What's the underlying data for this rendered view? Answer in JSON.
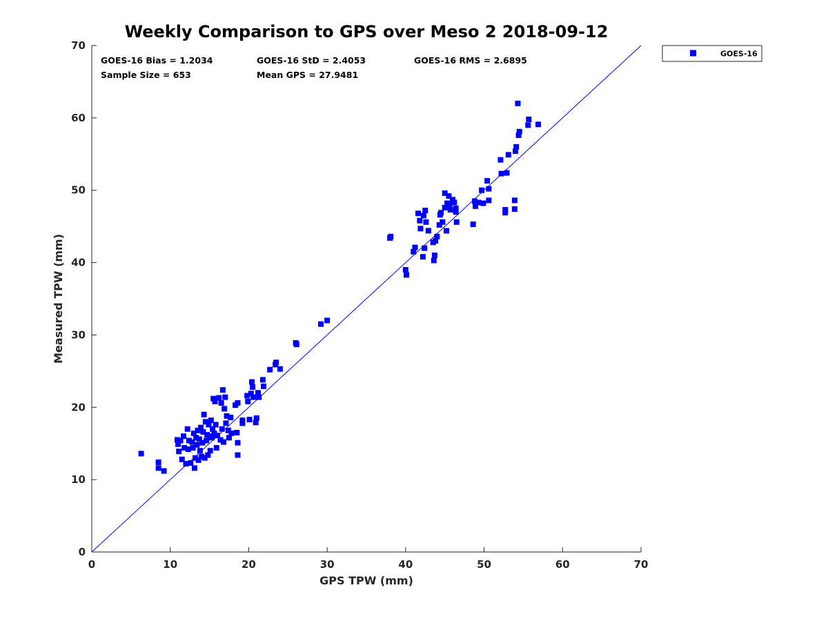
{
  "chart_data": {
    "type": "scatter",
    "title": "Weekly Comparison to GPS over Meso 2 2018-09-12",
    "xlabel": "GPS TPW (mm)",
    "ylabel": "Measured TPW (mm)",
    "xlim": [
      0,
      70
    ],
    "ylim": [
      0,
      70
    ],
    "xticks": [
      "0",
      "10",
      "20",
      "30",
      "40",
      "50",
      "60",
      "70"
    ],
    "yticks": [
      "0",
      "10",
      "20",
      "30",
      "40",
      "50",
      "60",
      "70"
    ],
    "grid": false,
    "legend_position": "outside top-right",
    "reference_line": {
      "x": [
        0,
        70
      ],
      "y": [
        0,
        70
      ],
      "color": "#0000ff"
    },
    "stats": [
      {
        "text": "GOES-16 Bias = 1.2034"
      },
      {
        "text": "GOES-16 StD = 2.4053"
      },
      {
        "text": "GOES-16 RMS = 2.6895"
      },
      {
        "text": "Sample Size = 653"
      },
      {
        "text": "Mean GPS = 27.9481"
      }
    ],
    "series": [
      {
        "name": "GOES-16",
        "color": "#0000ff",
        "marker": "square",
        "points": [
          [
            6.3,
            13.6
          ],
          [
            8.5,
            12.4
          ],
          [
            8.5,
            11.6
          ],
          [
            9.2,
            11.2
          ],
          [
            10.9,
            15.5
          ],
          [
            11.0,
            14.9
          ],
          [
            11.1,
            13.9
          ],
          [
            11.3,
            15.4
          ],
          [
            11.5,
            12.8
          ],
          [
            11.7,
            16.0
          ],
          [
            11.8,
            14.4
          ],
          [
            12.0,
            12.2
          ],
          [
            12.2,
            17.0
          ],
          [
            12.3,
            14.2
          ],
          [
            12.4,
            15.4
          ],
          [
            12.6,
            12.3
          ],
          [
            12.8,
            15.2
          ],
          [
            12.9,
            14.4
          ],
          [
            13.0,
            16.4
          ],
          [
            13.1,
            11.6
          ],
          [
            13.2,
            13.0
          ],
          [
            13.3,
            15.8
          ],
          [
            13.4,
            14.8
          ],
          [
            13.5,
            16.8
          ],
          [
            13.6,
            12.7
          ],
          [
            13.7,
            15.6
          ],
          [
            13.8,
            14.0
          ],
          [
            13.9,
            17.2
          ],
          [
            14.0,
            13.2
          ],
          [
            14.1,
            15.1
          ],
          [
            14.2,
            16.6
          ],
          [
            14.3,
            19.0
          ],
          [
            14.4,
            13.0
          ],
          [
            14.5,
            18.0
          ],
          [
            14.6,
            15.4
          ],
          [
            14.7,
            16.2
          ],
          [
            14.8,
            13.4
          ],
          [
            14.9,
            17.6
          ],
          [
            15.0,
            16.0
          ],
          [
            15.1,
            14.0
          ],
          [
            15.2,
            18.2
          ],
          [
            15.3,
            15.8
          ],
          [
            15.4,
            17.0
          ],
          [
            15.5,
            21.2
          ],
          [
            15.6,
            16.4
          ],
          [
            15.7,
            20.8
          ],
          [
            15.8,
            17.6
          ],
          [
            15.9,
            14.4
          ],
          [
            16.0,
            16.1
          ],
          [
            16.2,
            21.3
          ],
          [
            16.4,
            15.5
          ],
          [
            16.5,
            20.6
          ],
          [
            16.6,
            17.0
          ],
          [
            16.7,
            22.4
          ],
          [
            16.8,
            15.2
          ],
          [
            16.9,
            19.8
          ],
          [
            17.0,
            21.4
          ],
          [
            17.1,
            17.8
          ],
          [
            17.2,
            18.8
          ],
          [
            17.4,
            16.8
          ],
          [
            17.5,
            15.8
          ],
          [
            17.7,
            18.6
          ],
          [
            17.8,
            16.4
          ],
          [
            18.3,
            20.3
          ],
          [
            18.5,
            16.5
          ],
          [
            18.6,
            20.6
          ],
          [
            18.6,
            15.1
          ],
          [
            18.6,
            13.4
          ],
          [
            19.2,
            18.2
          ],
          [
            19.2,
            17.8
          ],
          [
            19.8,
            21.6
          ],
          [
            19.9,
            20.8
          ],
          [
            20.1,
            18.3
          ],
          [
            20.3,
            21.9
          ],
          [
            20.4,
            23.5
          ],
          [
            20.5,
            22.8
          ],
          [
            20.6,
            21.4
          ],
          [
            20.9,
            17.9
          ],
          [
            21.0,
            18.5
          ],
          [
            21.2,
            22.0
          ],
          [
            21.3,
            21.4
          ],
          [
            21.8,
            23.8
          ],
          [
            21.9,
            22.9
          ],
          [
            22.7,
            25.2
          ],
          [
            23.4,
            25.9
          ],
          [
            23.5,
            26.2
          ],
          [
            24.0,
            25.3
          ],
          [
            26.0,
            28.9
          ],
          [
            26.1,
            28.7
          ],
          [
            29.2,
            31.5
          ],
          [
            30.0,
            32.0
          ],
          [
            38.0,
            43.4
          ],
          [
            38.1,
            43.6
          ],
          [
            40.0,
            39.0
          ],
          [
            40.1,
            38.3
          ],
          [
            41.0,
            41.5
          ],
          [
            41.2,
            42.1
          ],
          [
            41.6,
            46.8
          ],
          [
            41.8,
            45.8
          ],
          [
            41.9,
            44.7
          ],
          [
            42.2,
            40.8
          ],
          [
            42.3,
            46.5
          ],
          [
            42.4,
            42.0
          ],
          [
            42.5,
            47.2
          ],
          [
            42.6,
            45.6
          ],
          [
            42.9,
            44.4
          ],
          [
            43.5,
            42.8
          ],
          [
            43.6,
            40.3
          ],
          [
            43.7,
            41.0
          ],
          [
            43.8,
            43.0
          ],
          [
            44.0,
            43.6
          ],
          [
            44.3,
            45.2
          ],
          [
            44.4,
            46.6
          ],
          [
            44.5,
            46.9
          ],
          [
            44.7,
            45.6
          ],
          [
            45.0,
            47.6
          ],
          [
            45.2,
            44.4
          ],
          [
            45.3,
            48.2
          ],
          [
            45.5,
            49.2
          ],
          [
            45.6,
            48.0
          ],
          [
            45.7,
            47.3
          ],
          [
            46.0,
            48.7
          ],
          [
            46.2,
            48.3
          ],
          [
            46.4,
            47.5
          ],
          [
            46.5,
            45.6
          ],
          [
            45.0,
            49.6
          ],
          [
            46.4,
            47.0
          ],
          [
            48.6,
            45.3
          ],
          [
            48.8,
            48.5
          ],
          [
            48.9,
            47.8
          ],
          [
            49.3,
            48.3
          ],
          [
            49.7,
            50.0
          ],
          [
            49.9,
            48.2
          ],
          [
            50.4,
            51.3
          ],
          [
            50.6,
            48.6
          ],
          [
            50.6,
            50.2
          ],
          [
            52.1,
            54.2
          ],
          [
            52.2,
            52.3
          ],
          [
            52.7,
            47.3
          ],
          [
            52.7,
            46.9
          ],
          [
            52.9,
            52.4
          ],
          [
            53.1,
            54.9
          ],
          [
            53.9,
            48.6
          ],
          [
            53.9,
            47.4
          ],
          [
            54.0,
            55.4
          ],
          [
            54.1,
            56.0
          ],
          [
            54.3,
            62.0
          ],
          [
            54.4,
            57.6
          ],
          [
            54.5,
            58.1
          ],
          [
            55.6,
            59.0
          ],
          [
            55.7,
            59.8
          ],
          [
            56.9,
            59.1
          ]
        ]
      }
    ]
  }
}
